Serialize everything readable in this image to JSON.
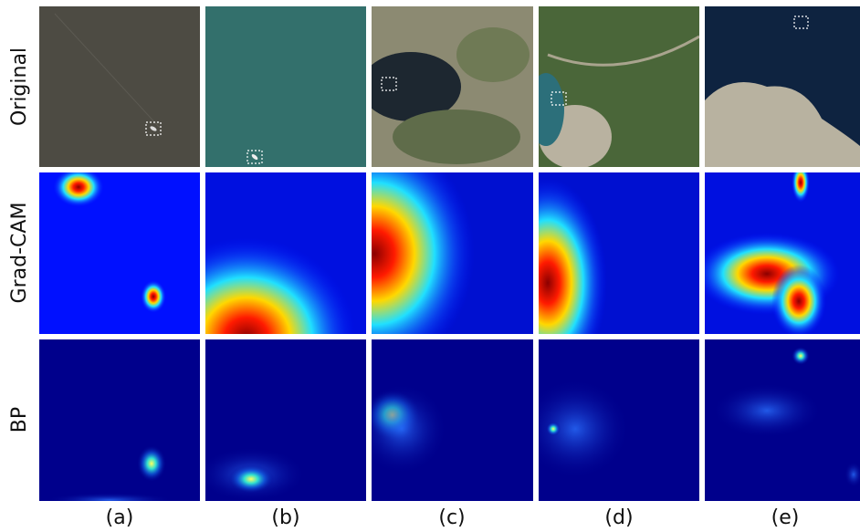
{
  "row_labels": [
    "Original",
    "Grad-CAM",
    "BP"
  ],
  "column_labels": [
    "(a)",
    "(b)",
    "(c)",
    "(d)",
    "(e)"
  ]
}
